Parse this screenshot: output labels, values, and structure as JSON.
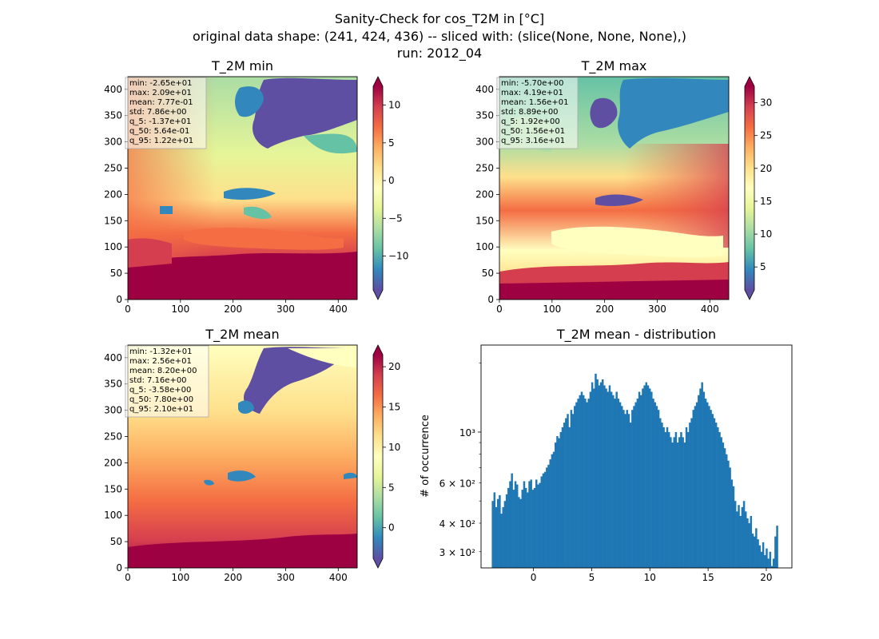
{
  "figure": {
    "suptitle_lines": [
      "Sanity-Check for cos_T2M in [°C]",
      "original data shape: (241, 424, 436) -- sliced with: (slice(None, None, None),)",
      "run: 2012_04"
    ]
  },
  "chart_data": [
    {
      "type": "heatmap",
      "title": "T_2M min",
      "xlim": [
        0,
        436
      ],
      "ylim": [
        0,
        424
      ],
      "xticks": [
        0,
        100,
        200,
        300,
        400
      ],
      "yticks": [
        0,
        50,
        100,
        150,
        200,
        250,
        300,
        350,
        400
      ],
      "colormap": "Spectral_r",
      "colorbar": {
        "range": [
          -14.5,
          12.5
        ],
        "ticks": [
          -10,
          -5,
          0,
          5,
          10
        ],
        "extend": "both"
      },
      "stats": [
        "min: -2.65e+01",
        "max: 2.09e+01",
        "mean: 7.77e-01",
        "std: 7.86e+00",
        "q_5: -1.37e+01",
        "q_50: 5.64e-01",
        "q_95: 1.22e+01"
      ]
    },
    {
      "type": "heatmap",
      "title": "T_2M max",
      "xlim": [
        0,
        436
      ],
      "ylim": [
        0,
        424
      ],
      "xticks": [
        0,
        100,
        200,
        300,
        400
      ],
      "yticks": [
        0,
        50,
        100,
        150,
        200,
        250,
        300,
        350,
        400
      ],
      "colormap": "Spectral_r",
      "colorbar": {
        "range": [
          1.5,
          32.5
        ],
        "ticks": [
          5,
          10,
          15,
          20,
          25,
          30
        ],
        "extend": "both"
      },
      "stats": [
        "min: -5.70e+00",
        "max: 4.19e+01",
        "mean: 1.56e+01",
        "std: 8.89e+00",
        "q_5: 1.92e+00",
        "q_50: 1.56e+01",
        "q_95: 3.16e+01"
      ]
    },
    {
      "type": "heatmap",
      "title": "T_2M mean",
      "xlim": [
        0,
        436
      ],
      "ylim": [
        0,
        424
      ],
      "xticks": [
        0,
        100,
        200,
        300,
        400
      ],
      "yticks": [
        0,
        50,
        100,
        150,
        200,
        250,
        300,
        350,
        400
      ],
      "colormap": "Spectral_r",
      "colorbar": {
        "range": [
          -3.8,
          21.5
        ],
        "ticks": [
          0,
          5,
          10,
          15,
          20
        ],
        "extend": "both"
      },
      "stats": [
        "min: -1.32e+01",
        "max: 2.56e+01",
        "mean: 8.20e+00",
        "std: 7.16e+00",
        "q_5: -3.58e+00",
        "q_50: 7.80e+00",
        "q_95: 2.10e+01"
      ]
    },
    {
      "type": "bar",
      "title": "T_2M mean - distribution",
      "ylabel": "# of occurrence",
      "yscale": "log",
      "xlim": [
        -4.5,
        22.2
      ],
      "ylim": [
        255,
        2400
      ],
      "xticks": [
        0,
        5,
        10,
        15,
        20
      ],
      "yticks_major": [
        {
          "value": 1000,
          "label": "10³"
        }
      ],
      "yticks_minor": [
        {
          "value": 300,
          "label": "3 × 10²"
        },
        {
          "value": 400,
          "label": "4 × 10²"
        },
        {
          "value": 600,
          "label": "6 × 10²"
        }
      ],
      "bar_color": "#1f77b4",
      "bin_range": [
        -3.58,
        21.0
      ],
      "counts": [
        500,
        545,
        470,
        510,
        530,
        440,
        470,
        500,
        535,
        570,
        610,
        660,
        560,
        610,
        590,
        520,
        510,
        560,
        610,
        570,
        545,
        610,
        620,
        560,
        570,
        620,
        590,
        600,
        640,
        660,
        670,
        700,
        720,
        760,
        800,
        820,
        900,
        960,
        940,
        1000,
        1050,
        1100,
        1150,
        1200,
        1050,
        1250,
        1200,
        1300,
        1350,
        1400,
        1450,
        1500,
        1450,
        1400,
        1350,
        1400,
        1500,
        1650,
        1550,
        1800,
        1700,
        1600,
        1650,
        1700,
        1600,
        1550,
        1500,
        1600,
        1500,
        1450,
        1400,
        1500,
        1400,
        1350,
        1300,
        1250,
        1200,
        1250,
        1200,
        1100,
        1250,
        1300,
        1350,
        1400,
        1500,
        1450,
        1550,
        1600,
        1650,
        1600,
        1550,
        1500,
        1400,
        1350,
        1300,
        1250,
        1150,
        1100,
        1050,
        1000,
        1050,
        1000,
        950,
        900,
        950,
        1000,
        900,
        950,
        1000,
        950,
        900,
        1050,
        1000,
        1100,
        1150,
        1250,
        1300,
        1350,
        1450,
        1550,
        1650,
        1500,
        1400,
        1350,
        1300,
        1250,
        1200,
        1150,
        1100,
        1050,
        1000,
        950,
        900,
        850,
        800,
        750,
        700,
        620,
        580,
        500,
        450,
        480,
        430,
        470,
        500,
        450,
        420,
        400,
        430,
        360,
        350,
        380,
        340,
        320,
        300,
        330,
        290,
        310,
        280,
        300,
        260,
        280,
        350,
        390
      ]
    }
  ]
}
